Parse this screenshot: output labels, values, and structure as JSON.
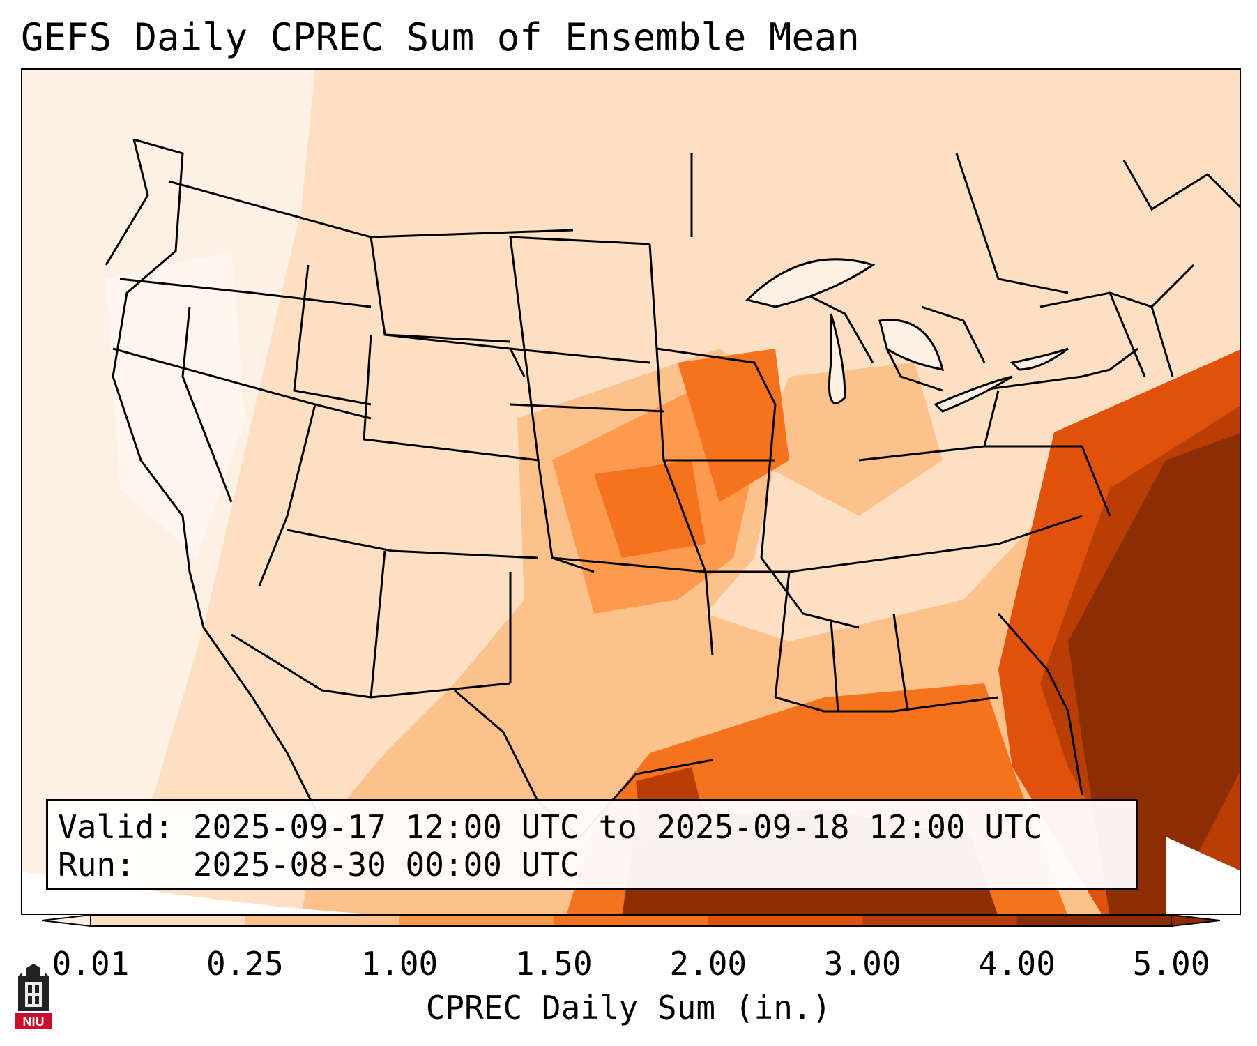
{
  "title": "GEFS Daily CPREC Sum of Ensemble Mean",
  "info": {
    "valid": "Valid: 2025-09-17 12:00 UTC to 2025-09-18 12:00 UTC",
    "run": "Run:   2025-08-30 00:00 UTC"
  },
  "colorbar": {
    "label": "CPREC Daily Sum (in.)",
    "ticks": [
      "0.01",
      "0.25",
      "1.00",
      "1.50",
      "2.00",
      "3.00",
      "4.00",
      "5.00"
    ],
    "colors": [
      "#fdf0e4",
      "#fde0c4",
      "#fdc18b",
      "#fd9a4e",
      "#f5731f",
      "#e0520c",
      "#b83e05",
      "#8c2d04"
    ]
  },
  "logo": {
    "text": "NIU",
    "icon": "niu-logo-icon"
  },
  "colors": {
    "lightest": "#fdf0e4",
    "light": "#fde0c4",
    "mid_light": "#fdc18b",
    "mid": "#fd9a4e",
    "orange": "#f5731f",
    "dark_orange": "#e0520c",
    "deep": "#b83e05",
    "darkest": "#8c2d04"
  }
}
